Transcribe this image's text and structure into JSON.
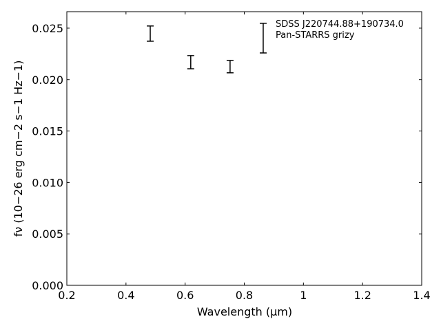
{
  "chart_data": {
    "type": "errorbar",
    "xlabel": "Wavelength (μm)",
    "ylabel": "fν (10−26 erg cm−2 s−1 Hz−1)",
    "xlim": [
      0.2,
      1.4
    ],
    "xticks": [
      0.2,
      0.4,
      0.6,
      0.8,
      1.0,
      1.2,
      1.4
    ],
    "ylim": [
      0,
      0.0266
    ],
    "yticks": [
      {
        "value": 0,
        "label": "0.000"
      },
      {
        "value": 0.005,
        "label": "0.005"
      },
      {
        "value": 0.01,
        "label": "0.010"
      },
      {
        "value": 0.015,
        "label": "0.015"
      },
      {
        "value": 0.02,
        "label": "0.020"
      },
      {
        "value": 0.025,
        "label": "0.025"
      }
    ],
    "legend": "upper right",
    "series": [
      {
        "name": "SDSS J220744.88+190734.0\nPan-STARRS grizy",
        "color": "#000000",
        "x": [
          0.482,
          0.619,
          0.752,
          0.864
        ],
        "values": [
          0.02447,
          0.02169,
          0.02126,
          0.02403
        ],
        "errors": [
          0.00074,
          0.00064,
          0.0006,
          0.00144
        ]
      }
    ]
  }
}
